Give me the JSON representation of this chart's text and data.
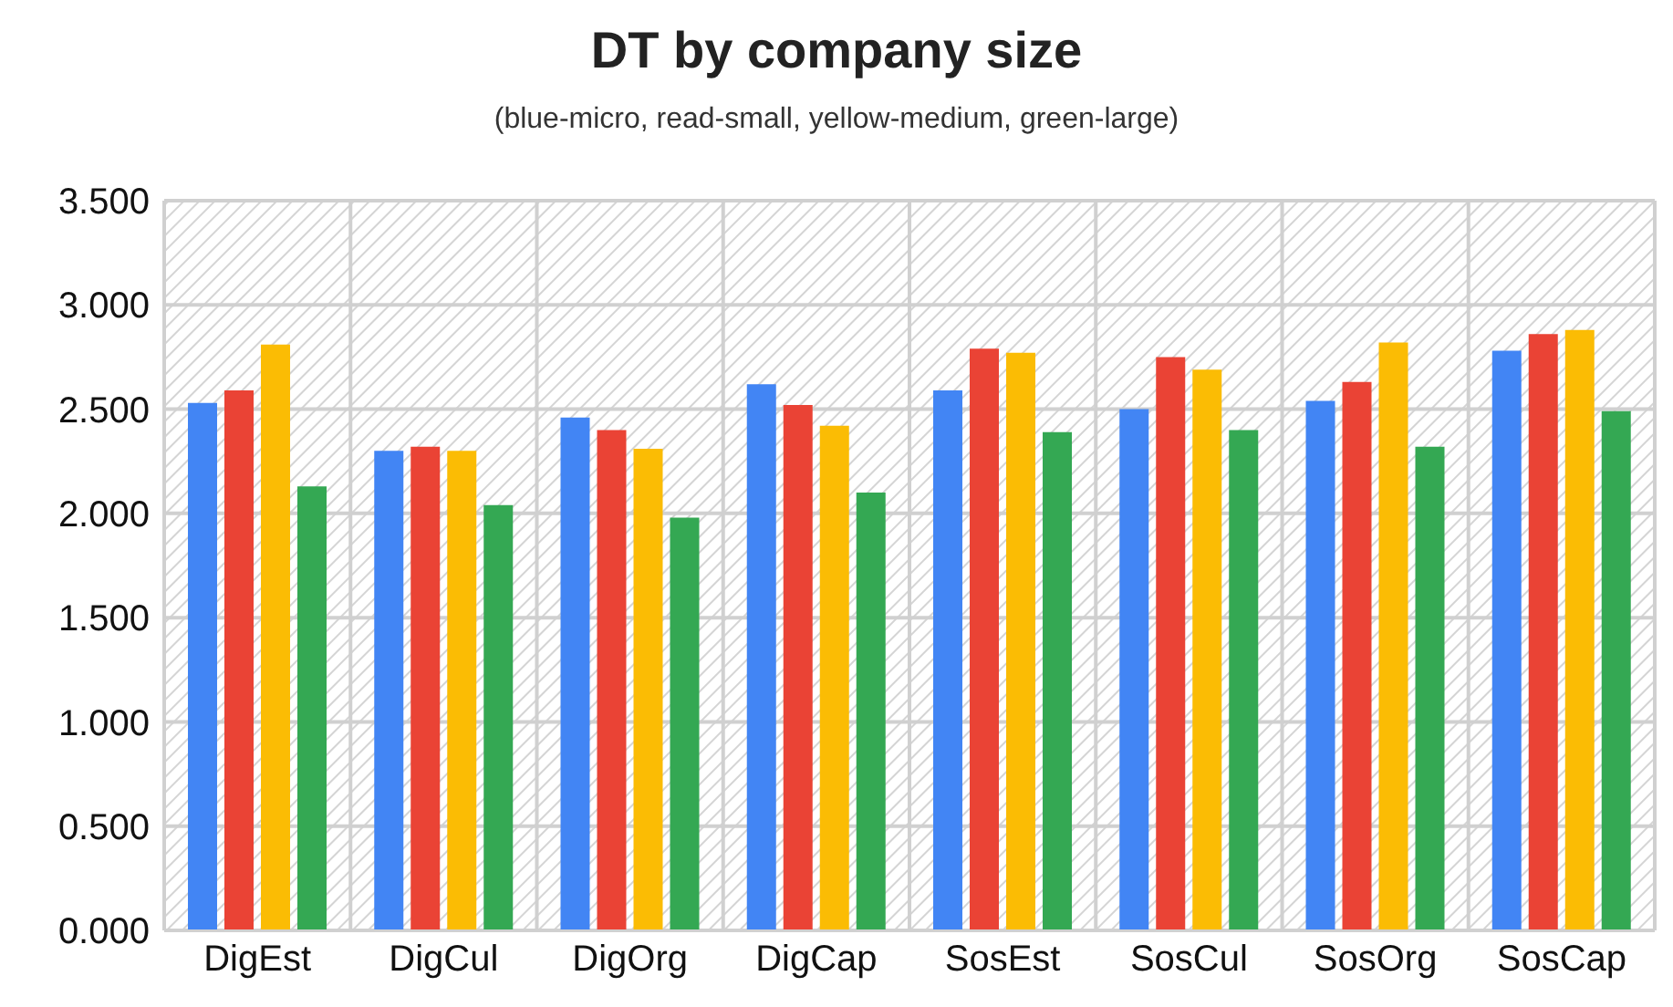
{
  "chart_data": {
    "type": "bar",
    "title": "DT by company size",
    "subtitle": "(blue-micro, read-small, yellow-medium, green-large)",
    "categories": [
      "DigEst",
      "DigCul",
      "DigOrg",
      "DigCap",
      "SosEst",
      "SosCul",
      "SosOrg",
      "SosCap"
    ],
    "series": [
      {
        "color": "#4285f4",
        "values": [
          2.53,
          2.3,
          2.46,
          2.62,
          2.59,
          2.5,
          2.54,
          2.78
        ]
      },
      {
        "color": "#ea4335",
        "values": [
          2.59,
          2.32,
          2.4,
          2.52,
          2.79,
          2.75,
          2.63,
          2.86
        ]
      },
      {
        "color": "#fbbc04",
        "values": [
          2.81,
          2.3,
          2.31,
          2.42,
          2.77,
          2.69,
          2.82,
          2.88
        ]
      },
      {
        "color": "#34a853",
        "values": [
          2.13,
          2.04,
          1.98,
          2.1,
          2.39,
          2.4,
          2.32,
          2.49
        ]
      }
    ],
    "ylim": [
      0,
      3.5
    ],
    "yticks": [
      {
        "value": 0,
        "label": "0.000"
      },
      {
        "value": 0.5,
        "label": "0.500"
      },
      {
        "value": 1,
        "label": "1.000"
      },
      {
        "value": 1.5,
        "label": "1.500"
      },
      {
        "value": 2,
        "label": "2.000"
      },
      {
        "value": 2.5,
        "label": "2.500"
      },
      {
        "value": 3,
        "label": "3.000"
      },
      {
        "value": 3.5,
        "label": "3.500"
      }
    ],
    "grid": true,
    "legend": false
  }
}
